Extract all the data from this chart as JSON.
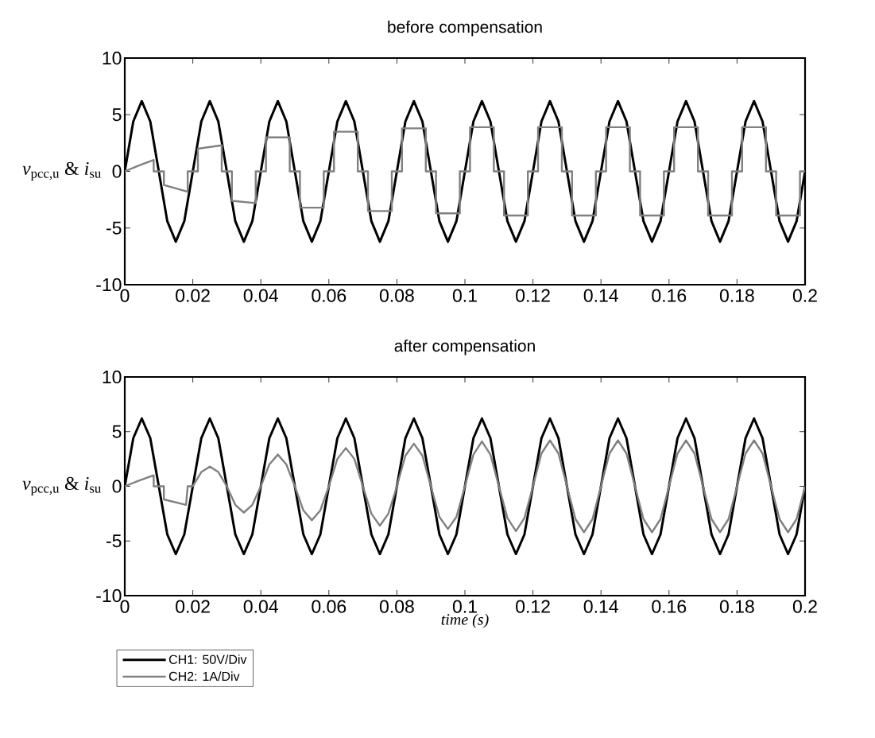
{
  "chart_data": [
    {
      "type": "line",
      "title": "before compensation",
      "ylabel": "*v*$_{pcc,u}$ & *i*$_{su}$",
      "xlim": [
        0,
        0.2
      ],
      "ylim": [
        -10,
        10
      ],
      "xticks": [
        0,
        0.02,
        0.04,
        0.06,
        0.08,
        0.1,
        0.12,
        0.14,
        0.16,
        0.18,
        0.2
      ],
      "yticks": [
        -10,
        -5,
        0,
        5,
        10
      ],
      "series": [
        {
          "color": "#000000",
          "x": [
            0,
            0.0025,
            0.005,
            0.0075,
            0.01,
            0.0125,
            0.015,
            0.0175,
            0.02,
            0.0225,
            0.025,
            0.0275,
            0.03,
            0.0325,
            0.035,
            0.0375,
            0.04,
            0.0425,
            0.045,
            0.0475,
            0.05,
            0.0525,
            0.055,
            0.0575,
            0.06,
            0.0625,
            0.065,
            0.0675,
            0.07,
            0.0725,
            0.075,
            0.0775,
            0.08,
            0.0825,
            0.085,
            0.0875,
            0.09,
            0.0925,
            0.095,
            0.0975,
            0.1,
            0.1025,
            0.105,
            0.1075,
            0.11,
            0.1125,
            0.115,
            0.1175,
            0.12,
            0.1225,
            0.125,
            0.1275,
            0.13,
            0.1325,
            0.135,
            0.1375,
            0.14,
            0.1425,
            0.145,
            0.1475,
            0.15,
            0.1525,
            0.155,
            0.1575,
            0.16,
            0.1625,
            0.165,
            0.1675,
            0.17,
            0.1725,
            0.175,
            0.1775,
            0.18,
            0.1825,
            0.185,
            0.1875,
            0.19,
            0.1925,
            0.195,
            0.1975,
            0.2
          ],
          "values": [
            0,
            4.4,
            6.2,
            4.4,
            0,
            -4.4,
            -6.2,
            -4.4,
            0,
            4.4,
            6.2,
            4.4,
            0,
            -4.4,
            -6.2,
            -4.4,
            0,
            4.4,
            6.2,
            4.4,
            0,
            -4.4,
            -6.2,
            -4.4,
            0,
            4.4,
            6.2,
            4.4,
            0,
            -4.4,
            -6.2,
            -4.4,
            0,
            4.4,
            6.2,
            4.4,
            0,
            -4.4,
            -6.2,
            -4.4,
            0,
            4.4,
            6.2,
            4.4,
            0,
            -4.4,
            -6.2,
            -4.4,
            0,
            4.4,
            6.2,
            4.4,
            0,
            -4.4,
            -6.2,
            -4.4,
            0,
            4.4,
            6.2,
            4.4,
            0,
            -4.4,
            -6.2,
            -4.4,
            0,
            4.4,
            6.2,
            4.4,
            0,
            -4.4,
            -6.2,
            -4.4,
            0,
            4.4,
            6.2,
            4.4,
            0,
            -4.4,
            -6.2,
            -4.4,
            0
          ]
        },
        {
          "color": "#808080",
          "x": [
            0,
            0.004,
            0.0085,
            0.0085,
            0.0115,
            0.0115,
            0.0185,
            0.0185,
            0.0215,
            0.0215,
            0.0285,
            0.0285,
            0.0315,
            0.0315,
            0.0385,
            0.0385,
            0.0415,
            0.0415,
            0.0485,
            0.0485,
            0.0515,
            0.0515,
            0.0585,
            0.0585,
            0.0615,
            0.0615,
            0.0685,
            0.0685,
            0.0715,
            0.0715,
            0.0785,
            0.0785,
            0.0815,
            0.0815,
            0.0885,
            0.0885,
            0.0915,
            0.0915,
            0.0985,
            0.0985,
            0.1015,
            0.1015,
            0.1085,
            0.1085,
            0.1115,
            0.1115,
            0.1185,
            0.1185,
            0.1215,
            0.1215,
            0.1285,
            0.1285,
            0.1315,
            0.1315,
            0.1385,
            0.1385,
            0.1415,
            0.1415,
            0.1485,
            0.1485,
            0.1515,
            0.1515,
            0.1585,
            0.1585,
            0.1615,
            0.1615,
            0.1685,
            0.1685,
            0.1715,
            0.1715,
            0.1785,
            0.1785,
            0.1815,
            0.1815,
            0.1885,
            0.1885,
            0.1915,
            0.1915,
            0.1985,
            0.1985,
            0.2
          ],
          "values": [
            0,
            0.5,
            1.0,
            0,
            0,
            -1.2,
            -1.8,
            0,
            0,
            2.0,
            2.3,
            0,
            0,
            -2.6,
            -2.8,
            0,
            0,
            3.0,
            3.0,
            0,
            0,
            -3.2,
            -3.2,
            0,
            0,
            3.5,
            3.5,
            0,
            0,
            -3.5,
            -3.5,
            0,
            0,
            3.8,
            3.8,
            0,
            0,
            -3.7,
            -3.7,
            0,
            0,
            3.9,
            3.9,
            0,
            0,
            -3.9,
            -3.9,
            0,
            0,
            3.9,
            3.9,
            0,
            0,
            -3.9,
            -3.9,
            0,
            0,
            3.9,
            3.9,
            0,
            0,
            -3.9,
            -3.9,
            0,
            0,
            3.9,
            3.9,
            0,
            0,
            -3.9,
            -3.9,
            0,
            0,
            3.9,
            3.9,
            0,
            0,
            -3.9,
            -3.9,
            0,
            0
          ]
        }
      ]
    },
    {
      "type": "line",
      "title": "after compensation",
      "ylabel": "*v*$_{pcc,u}$ & *i*$_{su}$",
      "xlabel": "time (s)",
      "xlim": [
        0,
        0.2
      ],
      "ylim": [
        -10,
        10
      ],
      "xticks": [
        0,
        0.02,
        0.04,
        0.06,
        0.08,
        0.1,
        0.12,
        0.14,
        0.16,
        0.18,
        0.2
      ],
      "yticks": [
        -10,
        -5,
        0,
        5,
        10
      ],
      "legend": "bottom left",
      "series": [
        {
          "name": "CH1: 50V/Div",
          "color": "#000000",
          "x": [
            0,
            0.0025,
            0.005,
            0.0075,
            0.01,
            0.0125,
            0.015,
            0.0175,
            0.02,
            0.0225,
            0.025,
            0.0275,
            0.03,
            0.0325,
            0.035,
            0.0375,
            0.04,
            0.0425,
            0.045,
            0.0475,
            0.05,
            0.0525,
            0.055,
            0.0575,
            0.06,
            0.0625,
            0.065,
            0.0675,
            0.07,
            0.0725,
            0.075,
            0.0775,
            0.08,
            0.0825,
            0.085,
            0.0875,
            0.09,
            0.0925,
            0.095,
            0.0975,
            0.1,
            0.1025,
            0.105,
            0.1075,
            0.11,
            0.1125,
            0.115,
            0.1175,
            0.12,
            0.1225,
            0.125,
            0.1275,
            0.13,
            0.1325,
            0.135,
            0.1375,
            0.14,
            0.1425,
            0.145,
            0.1475,
            0.15,
            0.1525,
            0.155,
            0.1575,
            0.16,
            0.1625,
            0.165,
            0.1675,
            0.17,
            0.1725,
            0.175,
            0.1775,
            0.18,
            0.1825,
            0.185,
            0.1875,
            0.19,
            0.1925,
            0.195,
            0.1975,
            0.2
          ],
          "values": [
            0,
            4.4,
            6.2,
            4.4,
            0,
            -4.4,
            -6.2,
            -4.4,
            0,
            4.4,
            6.2,
            4.4,
            0,
            -4.4,
            -6.2,
            -4.4,
            0,
            4.4,
            6.2,
            4.4,
            0,
            -4.4,
            -6.2,
            -4.4,
            0,
            4.4,
            6.2,
            4.4,
            0,
            -4.4,
            -6.2,
            -4.4,
            0,
            4.4,
            6.2,
            4.4,
            0,
            -4.4,
            -6.2,
            -4.4,
            0,
            4.4,
            6.2,
            4.4,
            0,
            -4.4,
            -6.2,
            -4.4,
            0,
            4.4,
            6.2,
            4.4,
            0,
            -4.4,
            -6.2,
            -4.4,
            0,
            4.4,
            6.2,
            4.4,
            0,
            -4.4,
            -6.2,
            -4.4,
            0,
            4.4,
            6.2,
            4.4,
            0,
            -4.4,
            -6.2,
            -4.4,
            0,
            4.4,
            6.2,
            4.4,
            0,
            -4.4,
            -6.2,
            -4.4,
            0
          ]
        },
        {
          "name": "CH2: 1A/Div",
          "color": "#808080",
          "x": [
            0,
            0.004,
            0.0085,
            0.0085,
            0.0115,
            0.0115,
            0.018,
            0.0185,
            0.02,
            0.0225,
            0.025,
            0.0275,
            0.03,
            0.0325,
            0.035,
            0.0375,
            0.04,
            0.0425,
            0.045,
            0.0475,
            0.05,
            0.0525,
            0.055,
            0.0575,
            0.06,
            0.0625,
            0.065,
            0.0675,
            0.07,
            0.0725,
            0.075,
            0.0775,
            0.08,
            0.0825,
            0.085,
            0.0875,
            0.09,
            0.0925,
            0.095,
            0.0975,
            0.1,
            0.1025,
            0.105,
            0.1075,
            0.11,
            0.1125,
            0.115,
            0.1175,
            0.12,
            0.1225,
            0.125,
            0.1275,
            0.13,
            0.1325,
            0.135,
            0.1375,
            0.14,
            0.1425,
            0.145,
            0.1475,
            0.15,
            0.1525,
            0.155,
            0.1575,
            0.16,
            0.1625,
            0.165,
            0.1675,
            0.17,
            0.1725,
            0.175,
            0.1775,
            0.18,
            0.1825,
            0.185,
            0.1875,
            0.19,
            0.1925,
            0.195,
            0.1975,
            0.2
          ],
          "values": [
            0,
            0.5,
            1.0,
            0,
            0,
            -1.2,
            -1.7,
            0,
            0,
            1.3,
            1.8,
            1.3,
            0,
            -1.7,
            -2.4,
            -1.7,
            0,
            2.0,
            2.9,
            2.0,
            0,
            -2.2,
            -3.1,
            -2.2,
            0,
            2.5,
            3.5,
            2.5,
            0,
            -2.5,
            -3.6,
            -2.5,
            0,
            2.8,
            3.9,
            2.8,
            0,
            -2.8,
            -3.9,
            -2.8,
            0,
            2.9,
            4.1,
            2.9,
            0,
            -2.9,
            -4.1,
            -2.9,
            0,
            3.0,
            4.2,
            3.0,
            0,
            -3.0,
            -4.2,
            -3.0,
            0,
            3.0,
            4.2,
            3.0,
            0,
            -3.0,
            -4.2,
            -3.0,
            0,
            3.0,
            4.2,
            3.0,
            0,
            -3.0,
            -4.2,
            -3.0,
            0,
            3.0,
            4.2,
            3.0,
            0,
            -3.0,
            -4.2,
            -3.0,
            0
          ]
        }
      ]
    }
  ]
}
